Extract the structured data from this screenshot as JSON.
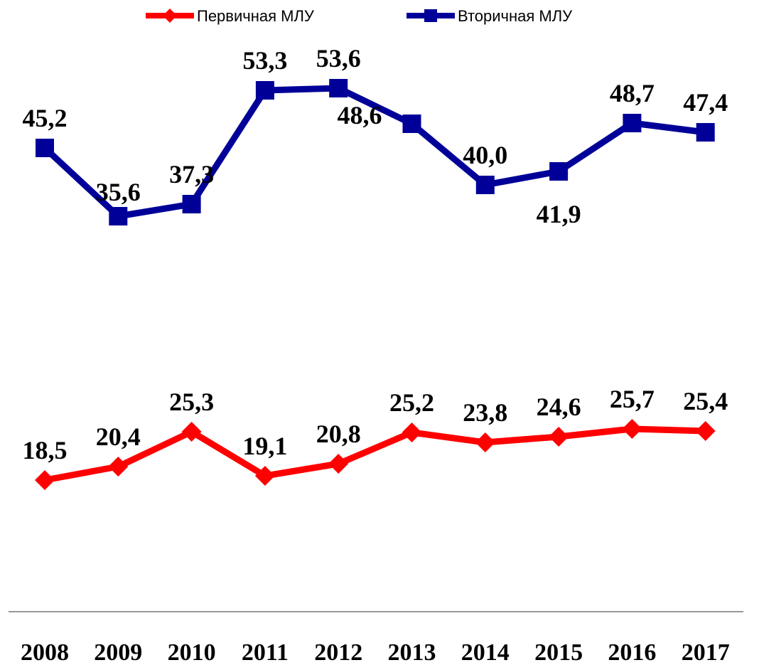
{
  "chart_data": {
    "type": "line",
    "categories": [
      "2008",
      "2009",
      "2010",
      "2011",
      "2012",
      "2013",
      "2014",
      "2015",
      "2016",
      "2017"
    ],
    "series": [
      {
        "name": "Первичная МЛУ",
        "color": "#ff0000",
        "marker": "diamond",
        "values": [
          18.5,
          20.4,
          25.3,
          19.1,
          20.8,
          25.2,
          23.8,
          24.6,
          25.7,
          25.4
        ],
        "value_labels": [
          "18,5",
          "20,4",
          "25,3",
          "19,1",
          "20,8",
          "25,2",
          "23,8",
          "24,6",
          "25,7",
          "25,4"
        ]
      },
      {
        "name": "Вторичная МЛУ",
        "color": "#000099",
        "marker": "square",
        "axis": "y2",
        "values": [
          45.2,
          35.6,
          37.3,
          53.3,
          53.6,
          48.6,
          40.0,
          41.9,
          48.7,
          47.4
        ],
        "value_labels": [
          "45,2",
          "35,6",
          "37,3",
          "53,3",
          "53,6",
          "48,6",
          "40,0",
          "41,9",
          "48,7",
          "47,4"
        ]
      }
    ],
    "ylim": [
      0,
      80
    ],
    "y2lim": [
      -20,
      60
    ],
    "grid": false,
    "legend": "top"
  }
}
